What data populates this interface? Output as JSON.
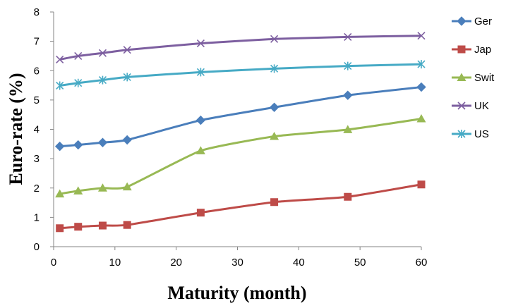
{
  "chart_data": {
    "type": "line",
    "title": "",
    "xlabel": "Maturity (month)",
    "ylabel": "Euro-rate (%)",
    "xlim": [
      0,
      60
    ],
    "ylim": [
      0,
      8
    ],
    "xticks": [
      0,
      10,
      20,
      30,
      40,
      50,
      60
    ],
    "yticks": [
      0,
      1,
      2,
      3,
      4,
      5,
      6,
      7,
      8
    ],
    "grid": false,
    "legend": "right",
    "x": [
      1,
      4,
      8,
      12,
      24,
      36,
      48,
      60
    ],
    "series": [
      {
        "name": "Ger",
        "color": "#4A7EBB",
        "marker": "diamond",
        "values": [
          3.42,
          3.47,
          3.55,
          3.64,
          4.31,
          4.75,
          5.16,
          5.44
        ]
      },
      {
        "name": "Jap",
        "color": "#BE4B48",
        "marker": "square",
        "values": [
          0.63,
          0.68,
          0.72,
          0.74,
          1.16,
          1.52,
          1.7,
          2.12
        ]
      },
      {
        "name": "Swit",
        "color": "#98B954",
        "marker": "triangle",
        "values": [
          1.8,
          1.9,
          2.0,
          2.04,
          3.27,
          3.76,
          3.99,
          4.36
        ]
      },
      {
        "name": "UK",
        "color": "#7D5FA0",
        "marker": "x",
        "values": [
          6.38,
          6.5,
          6.6,
          6.71,
          6.93,
          7.08,
          7.15,
          7.19
        ]
      },
      {
        "name": "US",
        "color": "#46AAC5",
        "marker": "star",
        "values": [
          5.49,
          5.58,
          5.68,
          5.78,
          5.95,
          6.07,
          6.16,
          6.22
        ]
      }
    ]
  }
}
